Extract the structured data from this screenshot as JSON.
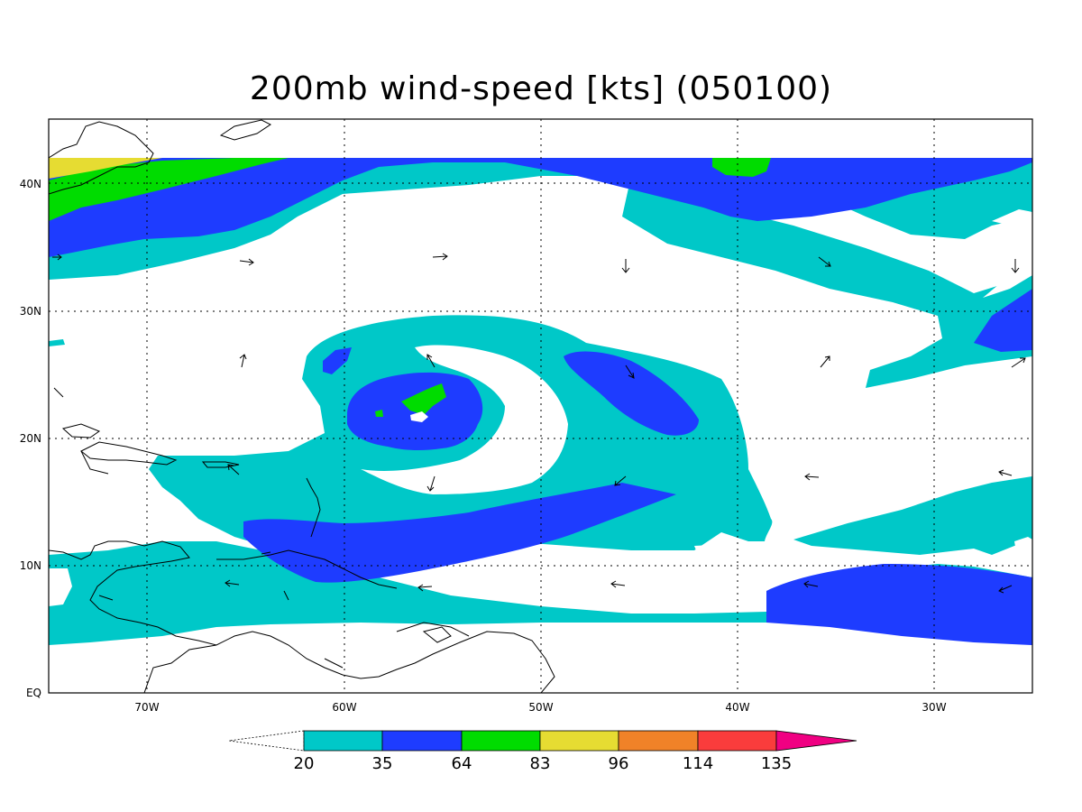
{
  "title": "200mb wind-speed [kts] (050100)",
  "map": {
    "lat_labels": [
      "40N",
      "30N",
      "20N",
      "10N",
      "EQ"
    ],
    "lon_labels": [
      "70W",
      "60W",
      "50W",
      "40W",
      "30W"
    ]
  },
  "colorbar": {
    "labels": [
      "20",
      "35",
      "64",
      "83",
      "96",
      "114",
      "135"
    ],
    "colors": [
      "#00c8c8",
      "#1e3cff",
      "#00dc00",
      "#e6dc32",
      "#f08228",
      "#fa3c3c",
      "#f00082"
    ]
  },
  "palette": {
    "band_20_35": "#00c8c8",
    "band_35_64": "#1e3cff",
    "band_64_83": "#00dc00",
    "band_83_96": "#e6dc32"
  }
}
